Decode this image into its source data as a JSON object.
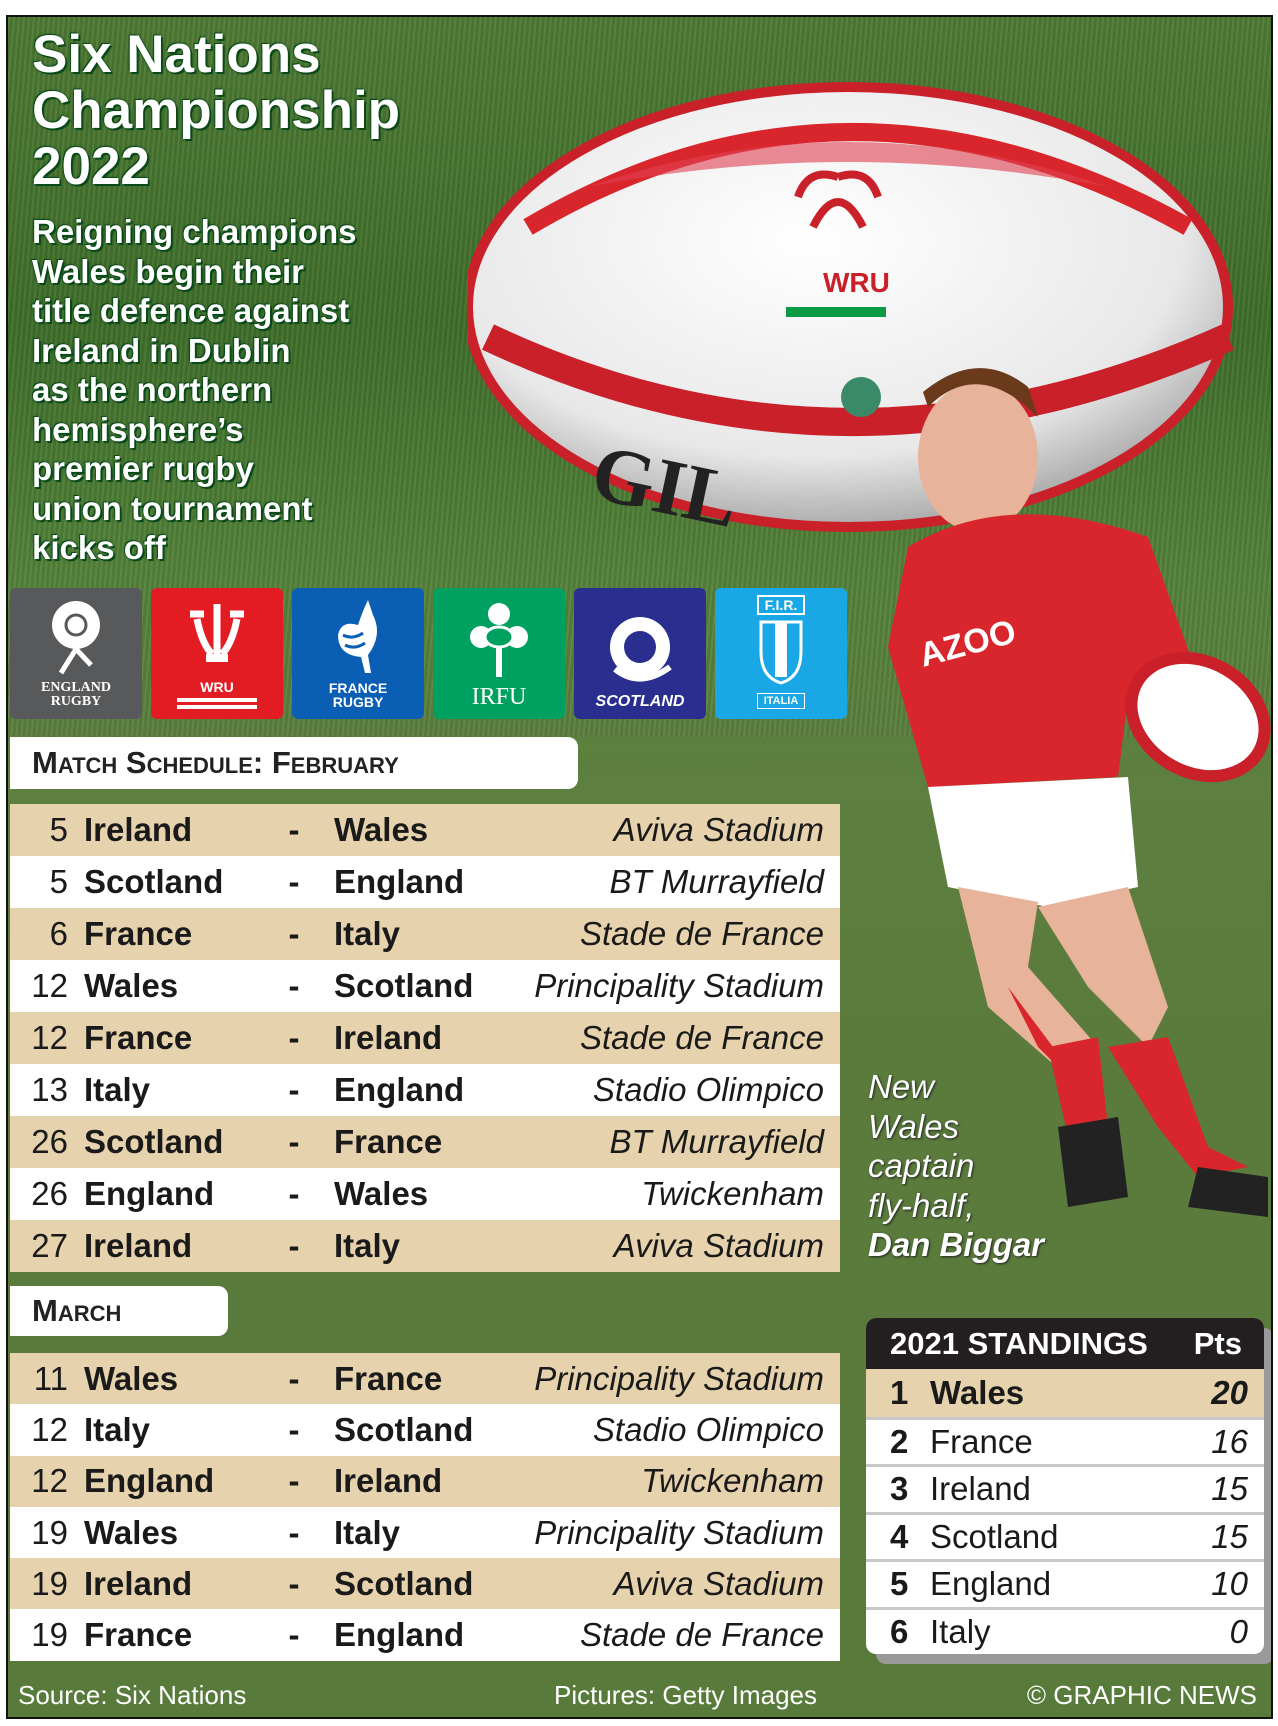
{
  "title": "Six Nations Championship 2022",
  "title_lines": [
    "Six Nations",
    "Championship",
    "2022"
  ],
  "subtitle": "Reigning champions\nWales begin their\ntitle defence against\nIreland in Dublin\nas the northern\nhemisphere’s\npremier rugby\nunion tournament\nkicks off",
  "logos": [
    {
      "name": "England Rugby",
      "text": "ENGLAND\nRUGBY",
      "color": "#58595b",
      "icon": "rose-icon"
    },
    {
      "name": "WRU",
      "text": "WRU",
      "color": "#e31b23",
      "icon": "prince-of-wales-feathers-icon"
    },
    {
      "name": "France Rugby",
      "text": "FRANCE\nRUGBY",
      "color": "#0a5fb4",
      "icon": "rooster-icon"
    },
    {
      "name": "IRFU",
      "text": "IRFU",
      "color": "#00a160",
      "icon": "shamrock-icon"
    },
    {
      "name": "Scotland",
      "text": "SCOTLAND",
      "color": "#2a2e8f",
      "icon": "thistle-icon"
    },
    {
      "name": "F.I.R.",
      "text": "F.I.R.",
      "subtext": "ITALIA",
      "color": "#19a7e6",
      "icon": "shield-icon"
    }
  ],
  "ball_text": "WRU",
  "february": {
    "header": "Match Schedule: February",
    "matches": [
      {
        "day": "5",
        "home": "Ireland",
        "away": "Wales",
        "venue": "Aviva Stadium"
      },
      {
        "day": "5",
        "home": "Scotland",
        "away": "England",
        "venue": "BT Murrayfield"
      },
      {
        "day": "6",
        "home": "France",
        "away": "Italy",
        "venue": "Stade de France"
      },
      {
        "day": "12",
        "home": "Wales",
        "away": "Scotland",
        "venue": "Principality Stadium"
      },
      {
        "day": "12",
        "home": "France",
        "away": "Ireland",
        "venue": "Stade de France"
      },
      {
        "day": "13",
        "home": "Italy",
        "away": "England",
        "venue": "Stadio Olimpico"
      },
      {
        "day": "26",
        "home": "Scotland",
        "away": "France",
        "venue": "BT Murrayfield"
      },
      {
        "day": "26",
        "home": "England",
        "away": "Wales",
        "venue": "Twickenham"
      },
      {
        "day": "27",
        "home": "Ireland",
        "away": "Italy",
        "venue": "Aviva Stadium"
      }
    ]
  },
  "march": {
    "header": "March",
    "matches": [
      {
        "day": "11",
        "home": "Wales",
        "away": "France",
        "venue": "Principality Stadium"
      },
      {
        "day": "12",
        "home": "Italy",
        "away": "Scotland",
        "venue": "Stadio Olimpico"
      },
      {
        "day": "12",
        "home": "England",
        "away": "Ireland",
        "venue": "Twickenham"
      },
      {
        "day": "19",
        "home": "Wales",
        "away": "Italy",
        "venue": "Principality Stadium"
      },
      {
        "day": "19",
        "home": "Ireland",
        "away": "Scotland",
        "venue": "Aviva Stadium"
      },
      {
        "day": "19",
        "home": "France",
        "away": "England",
        "venue": "Stade de France"
      }
    ]
  },
  "dash": "-",
  "caption": {
    "lines": [
      "New",
      "Wales",
      "captain",
      "fly-half,"
    ],
    "name": "Dan Biggar"
  },
  "standings": {
    "title": "2021 STANDINGS",
    "pts_label": "Pts",
    "rows": [
      {
        "rank": "1",
        "team": "Wales",
        "pts": "20"
      },
      {
        "rank": "2",
        "team": "France",
        "pts": "16"
      },
      {
        "rank": "3",
        "team": "Ireland",
        "pts": "15"
      },
      {
        "rank": "4",
        "team": "Scotland",
        "pts": "15"
      },
      {
        "rank": "5",
        "team": "England",
        "pts": "10"
      },
      {
        "rank": "6",
        "team": "Italy",
        "pts": "0"
      }
    ]
  },
  "footer": {
    "source": "Source: Six Nations",
    "pictures": "Pictures: Getty Images",
    "copyright": "© GRAPHIC NEWS"
  },
  "colors": {
    "row_alt": "#e6d3ad",
    "wales_red": "#d9262c",
    "background_green": "#5a7b3c"
  }
}
